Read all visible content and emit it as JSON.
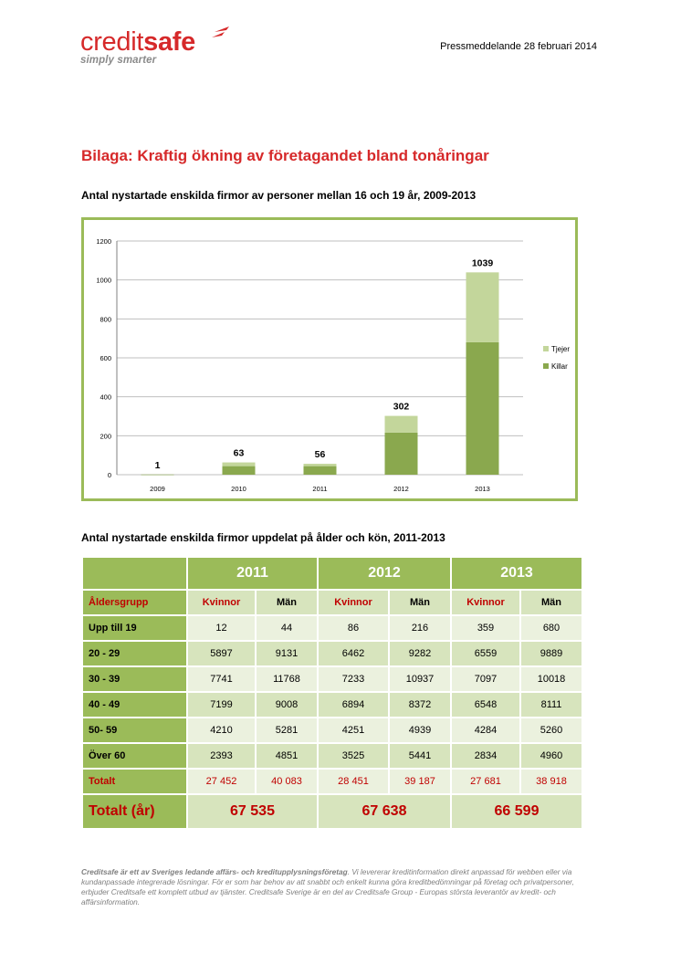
{
  "header": {
    "logo_credit": "credit",
    "logo_safe": "safe",
    "logo_tagline": "simply smarter",
    "press_line": "Pressmeddelande 28 februari 2014"
  },
  "title": "Bilaga: Kraftig ökning av företagandet bland tonåringar",
  "chart_heading": "Antal nystartade enskilda firmor av personer mellan 16 och 19 år, 2009-2013",
  "chart_data": {
    "type": "bar",
    "stacked": true,
    "categories": [
      "2009",
      "2010",
      "2011",
      "2012",
      "2013"
    ],
    "series": [
      {
        "name": "Killar",
        "color": "#8aa84e",
        "values": [
          1,
          44,
          44,
          216,
          680
        ]
      },
      {
        "name": "Tjejer",
        "color": "#c3d69b",
        "values": [
          0,
          19,
          12,
          86,
          359
        ]
      }
    ],
    "totals": [
      1,
      63,
      56,
      302,
      1039
    ],
    "ylim": [
      0,
      1200
    ],
    "yticks": [
      "0",
      "200",
      "400",
      "600",
      "800",
      "1000",
      "1200"
    ],
    "legend": [
      "Tjejer",
      "Killar"
    ],
    "legend_position": "right",
    "grid": true
  },
  "table_heading": "Antal nystartade enskilda firmor uppdelat på ålder och kön, 2011-2013",
  "table": {
    "years": [
      "2011",
      "2012",
      "2013"
    ],
    "group_label": "Åldersgrupp",
    "col_women": "Kvinnor",
    "col_men": "Män",
    "rows": [
      {
        "group": "Upp till 19",
        "values": [
          "12",
          "44",
          "86",
          "216",
          "359",
          "680"
        ]
      },
      {
        "group": "20 - 29",
        "values": [
          "5897",
          "9131",
          "6462",
          "9282",
          "6559",
          "9889"
        ]
      },
      {
        "group": "30 - 39",
        "values": [
          "7741",
          "11768",
          "7233",
          "10937",
          "7097",
          "10018"
        ]
      },
      {
        "group": "40 - 49",
        "values": [
          "7199",
          "9008",
          "6894",
          "8372",
          "6548",
          "8111"
        ]
      },
      {
        "group": "50- 59",
        "values": [
          "4210",
          "5281",
          "4251",
          "4939",
          "4284",
          "5260"
        ]
      },
      {
        "group": "Över 60",
        "values": [
          "2393",
          "4851",
          "3525",
          "5441",
          "2834",
          "4960"
        ]
      }
    ],
    "total_label": "Totalt",
    "totals": [
      "27 452",
      "40 083",
      "28 451",
      "39 187",
      "27 681",
      "38 918"
    ],
    "year_total_label": "Totalt (år)",
    "year_totals": [
      "67 535",
      "67 638",
      "66 599"
    ]
  },
  "footer": {
    "bold": "Creditsafe är ett av Sveriges ledande affärs- och kreditupplysningsföretag",
    "text": ". Vi levererar kreditinformation direkt anpassad för webben eller via kundanpassade integrerade lösningar. För er som har behov av att snabbt och enkelt kunna göra kreditbedömningar på företag och privatpersoner, erbjuder Creditsafe ett komplett utbud av tjänster. Creditsafe Sverige är en del av Creditsafe Group - Europas största leverantör av kredit- och affärsinformation."
  },
  "colors": {
    "brand_red": "#d6292a",
    "table_dark": "#9bbb59",
    "table_light": "#ebf1de",
    "table_mid": "#d7e4bd"
  }
}
